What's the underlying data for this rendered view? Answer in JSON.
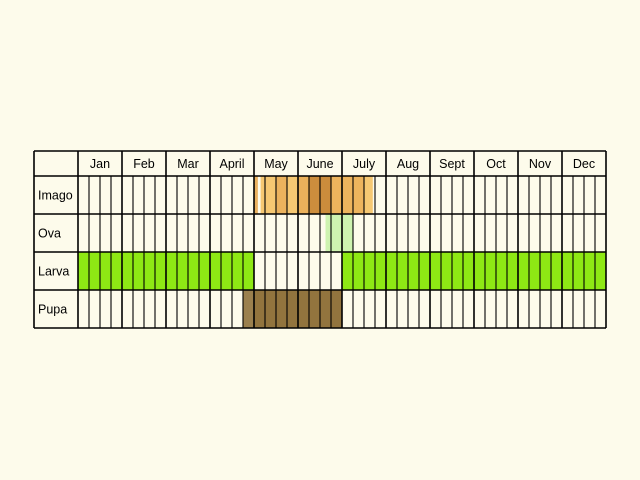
{
  "months": [
    "Jan",
    "Feb",
    "Mar",
    "April",
    "May",
    "June",
    "July",
    "Aug",
    "Sept",
    "Oct",
    "Nov",
    "Dec"
  ],
  "stages": [
    {
      "label": "Imago",
      "key": "imago"
    },
    {
      "label": "Ova",
      "key": "ova"
    },
    {
      "label": "Larva",
      "key": "larva"
    },
    {
      "label": "Pupa",
      "key": "pupa"
    }
  ],
  "colors": {
    "background": "#fdfbeb",
    "grid": "#000000",
    "imago_light": "#f6c56c",
    "imago_mid": "#e9ad57",
    "imago_dark": "#c98a3a",
    "ova": "#c9f2aa",
    "larva": "#8ee814",
    "pupa": "#8a6a32"
  },
  "activity": {
    "imago": [
      {
        "from_week": 16.0,
        "to_week": 16.35,
        "color": "imago_mid",
        "opacity": 0.95
      },
      {
        "from_week": 16.6,
        "to_week": 21.0,
        "color": "imago_light",
        "opacity": 0.95
      },
      {
        "from_week": 20.8,
        "to_week": 26.8,
        "color": "imago_light",
        "opacity": 0.95
      },
      {
        "from_week": 18.0,
        "to_week": 19.0,
        "color": "imago_mid",
        "opacity": 0.8
      },
      {
        "from_week": 20.0,
        "to_week": 21.0,
        "color": "imago_mid",
        "opacity": 0.85
      },
      {
        "from_week": 22.0,
        "to_week": 26.0,
        "color": "imago_mid",
        "opacity": 0.75
      },
      {
        "from_week": 21.0,
        "to_week": 23.0,
        "color": "imago_dark",
        "opacity": 0.95
      }
    ],
    "ova": [
      {
        "from_week": 22.5,
        "to_week": 25.0,
        "color": "ova",
        "opacity": 0.9
      }
    ],
    "larva": [
      {
        "from_week": 0.0,
        "to_week": 16.0,
        "color": "larva",
        "opacity": 1
      },
      {
        "from_week": 24.0,
        "to_week": 48.0,
        "color": "larva",
        "opacity": 1
      }
    ],
    "pupa": [
      {
        "from_week": 15.0,
        "to_week": 24.0,
        "color": "pupa",
        "opacity": 0.85
      },
      {
        "from_week": 16.0,
        "to_week": 24.0,
        "color": "pupa",
        "opacity": 0.55
      }
    ]
  }
}
